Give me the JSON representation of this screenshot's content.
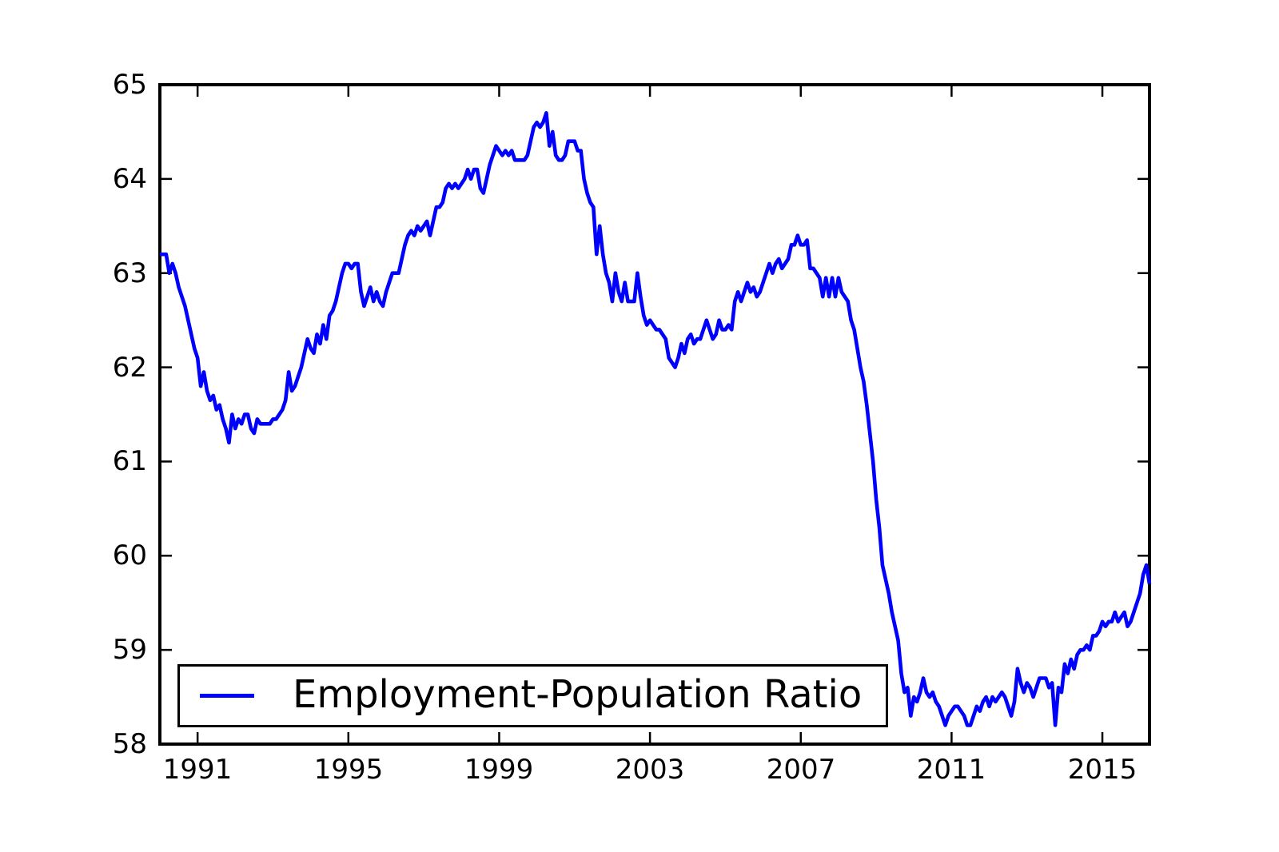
{
  "chart_data": {
    "type": "line",
    "title": "",
    "xlabel": "",
    "ylabel": "",
    "xlim": [
      1990.0,
      2016.25
    ],
    "ylim": [
      58,
      65
    ],
    "x_ticks": [
      "1991",
      "1995",
      "1999",
      "2003",
      "2007",
      "2011",
      "2015"
    ],
    "x_tick_values": [
      1991,
      1995,
      1999,
      2003,
      2007,
      2011,
      2015
    ],
    "y_ticks": [
      "58",
      "59",
      "60",
      "61",
      "62",
      "63",
      "64",
      "65"
    ],
    "y_tick_values": [
      58,
      59,
      60,
      61,
      62,
      63,
      64,
      65
    ],
    "grid": false,
    "frame_color": "#000000",
    "background_color": "#ffffff",
    "legend": {
      "label": "Employment-Population Ratio",
      "position": "lower-left"
    },
    "series": [
      {
        "name": "Employment-Population Ratio",
        "color": "#0000ff",
        "frequency": "monthly",
        "start_year": 1990,
        "start_month": 1,
        "values": [
          63.2,
          63.2,
          63.2,
          63.0,
          63.1,
          63.0,
          62.85,
          62.75,
          62.65,
          62.5,
          62.35,
          62.2,
          62.1,
          61.8,
          61.95,
          61.75,
          61.65,
          61.7,
          61.55,
          61.6,
          61.45,
          61.35,
          61.2,
          61.5,
          61.35,
          61.45,
          61.4,
          61.5,
          61.5,
          61.35,
          61.3,
          61.45,
          61.4,
          61.4,
          61.4,
          61.4,
          61.45,
          61.45,
          61.5,
          61.55,
          61.65,
          61.95,
          61.75,
          61.8,
          61.9,
          62.0,
          62.15,
          62.3,
          62.2,
          62.15,
          62.35,
          62.25,
          62.45,
          62.3,
          62.55,
          62.6,
          62.7,
          62.85,
          63.0,
          63.1,
          63.1,
          63.05,
          63.1,
          63.1,
          62.8,
          62.65,
          62.75,
          62.85,
          62.7,
          62.8,
          62.7,
          62.65,
          62.8,
          62.9,
          63.0,
          63.0,
          63.0,
          63.15,
          63.3,
          63.4,
          63.45,
          63.4,
          63.5,
          63.45,
          63.5,
          63.55,
          63.4,
          63.55,
          63.7,
          63.7,
          63.75,
          63.9,
          63.95,
          63.9,
          63.95,
          63.9,
          63.95,
          64.0,
          64.1,
          64.0,
          64.1,
          64.1,
          63.9,
          63.85,
          64.0,
          64.15,
          64.25,
          64.35,
          64.3,
          64.25,
          64.3,
          64.25,
          64.3,
          64.2,
          64.2,
          64.2,
          64.2,
          64.25,
          64.4,
          64.55,
          64.6,
          64.55,
          64.6,
          64.7,
          64.35,
          64.5,
          64.25,
          64.2,
          64.2,
          64.25,
          64.4,
          64.4,
          64.4,
          64.3,
          64.3,
          64.0,
          63.85,
          63.75,
          63.7,
          63.2,
          63.5,
          63.2,
          63.0,
          62.9,
          62.7,
          63.0,
          62.8,
          62.7,
          62.9,
          62.7,
          62.7,
          62.7,
          63.0,
          62.75,
          62.55,
          62.45,
          62.5,
          62.45,
          62.4,
          62.4,
          62.35,
          62.3,
          62.1,
          62.05,
          62.0,
          62.1,
          62.25,
          62.15,
          62.3,
          62.35,
          62.25,
          62.3,
          62.3,
          62.4,
          62.5,
          62.4,
          62.3,
          62.35,
          62.5,
          62.4,
          62.4,
          62.45,
          62.4,
          62.7,
          62.8,
          62.7,
          62.8,
          62.9,
          62.8,
          62.85,
          62.75,
          62.8,
          62.9,
          63.0,
          63.1,
          63.0,
          63.1,
          63.15,
          63.05,
          63.1,
          63.15,
          63.3,
          63.3,
          63.4,
          63.3,
          63.3,
          63.35,
          63.05,
          63.05,
          63.0,
          62.95,
          62.75,
          62.95,
          62.75,
          62.95,
          62.75,
          62.95,
          62.8,
          62.75,
          62.7,
          62.5,
          62.4,
          62.2,
          62.0,
          61.85,
          61.6,
          61.3,
          61.0,
          60.6,
          60.3,
          59.9,
          59.75,
          59.6,
          59.4,
          59.25,
          59.1,
          58.75,
          58.55,
          58.6,
          58.3,
          58.5,
          58.45,
          58.55,
          58.7,
          58.55,
          58.5,
          58.55,
          58.45,
          58.4,
          58.3,
          58.2,
          58.3,
          58.35,
          58.4,
          58.4,
          58.35,
          58.3,
          58.2,
          58.2,
          58.3,
          58.4,
          58.35,
          58.45,
          58.5,
          58.4,
          58.5,
          58.45,
          58.5,
          58.55,
          58.5,
          58.4,
          58.3,
          58.45,
          58.8,
          58.65,
          58.55,
          58.65,
          58.6,
          58.5,
          58.6,
          58.7,
          58.7,
          58.7,
          58.6,
          58.65,
          58.2,
          58.6,
          58.55,
          58.85,
          58.75,
          58.9,
          58.8,
          58.95,
          59.0,
          59.0,
          59.05,
          59.0,
          59.15,
          59.15,
          59.2,
          59.3,
          59.25,
          59.3,
          59.3,
          59.4,
          59.3,
          59.35,
          59.4,
          59.25,
          59.3,
          59.4,
          59.5,
          59.6,
          59.8,
          59.9,
          59.7
        ]
      }
    ]
  }
}
